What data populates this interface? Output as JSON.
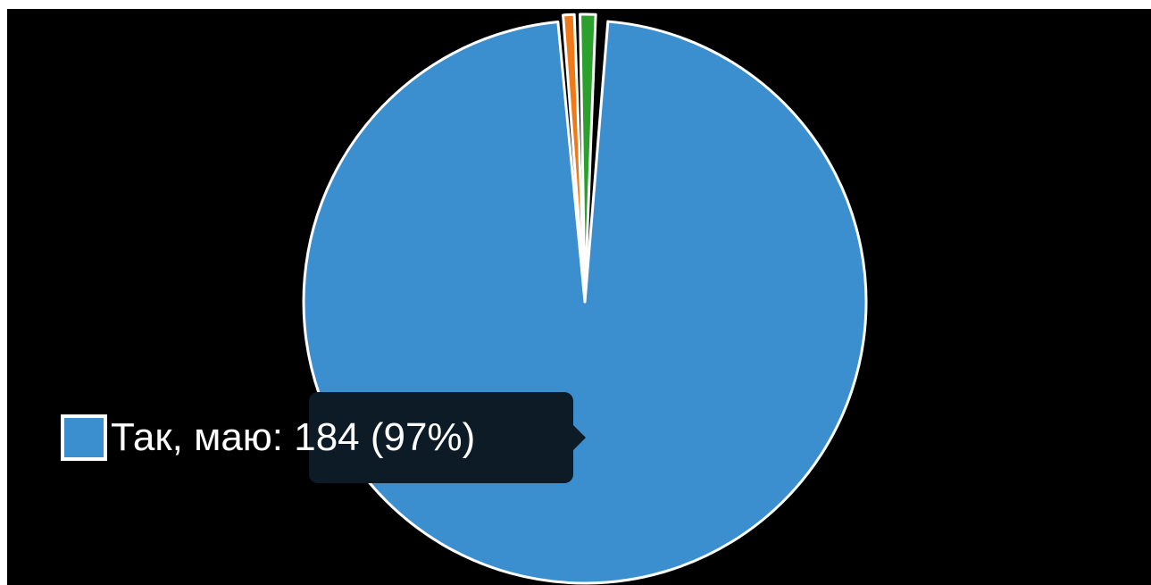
{
  "chart_data": {
    "type": "pie",
    "title": "",
    "slices": [
      {
        "name": "Так, маю",
        "value": 184,
        "percent": 97,
        "color": "#3c8fcf"
      },
      {
        "color": "#f07a19"
      },
      {
        "color": "#2ca02c"
      }
    ],
    "slice_border_color": "#ffffff",
    "background": "#000000"
  },
  "tooltip": {
    "label": "Так, маю",
    "value": "184",
    "percent": "97%",
    "text": "Так, маю: 184 (97%)",
    "swatch_color": "#3c8fcf"
  }
}
